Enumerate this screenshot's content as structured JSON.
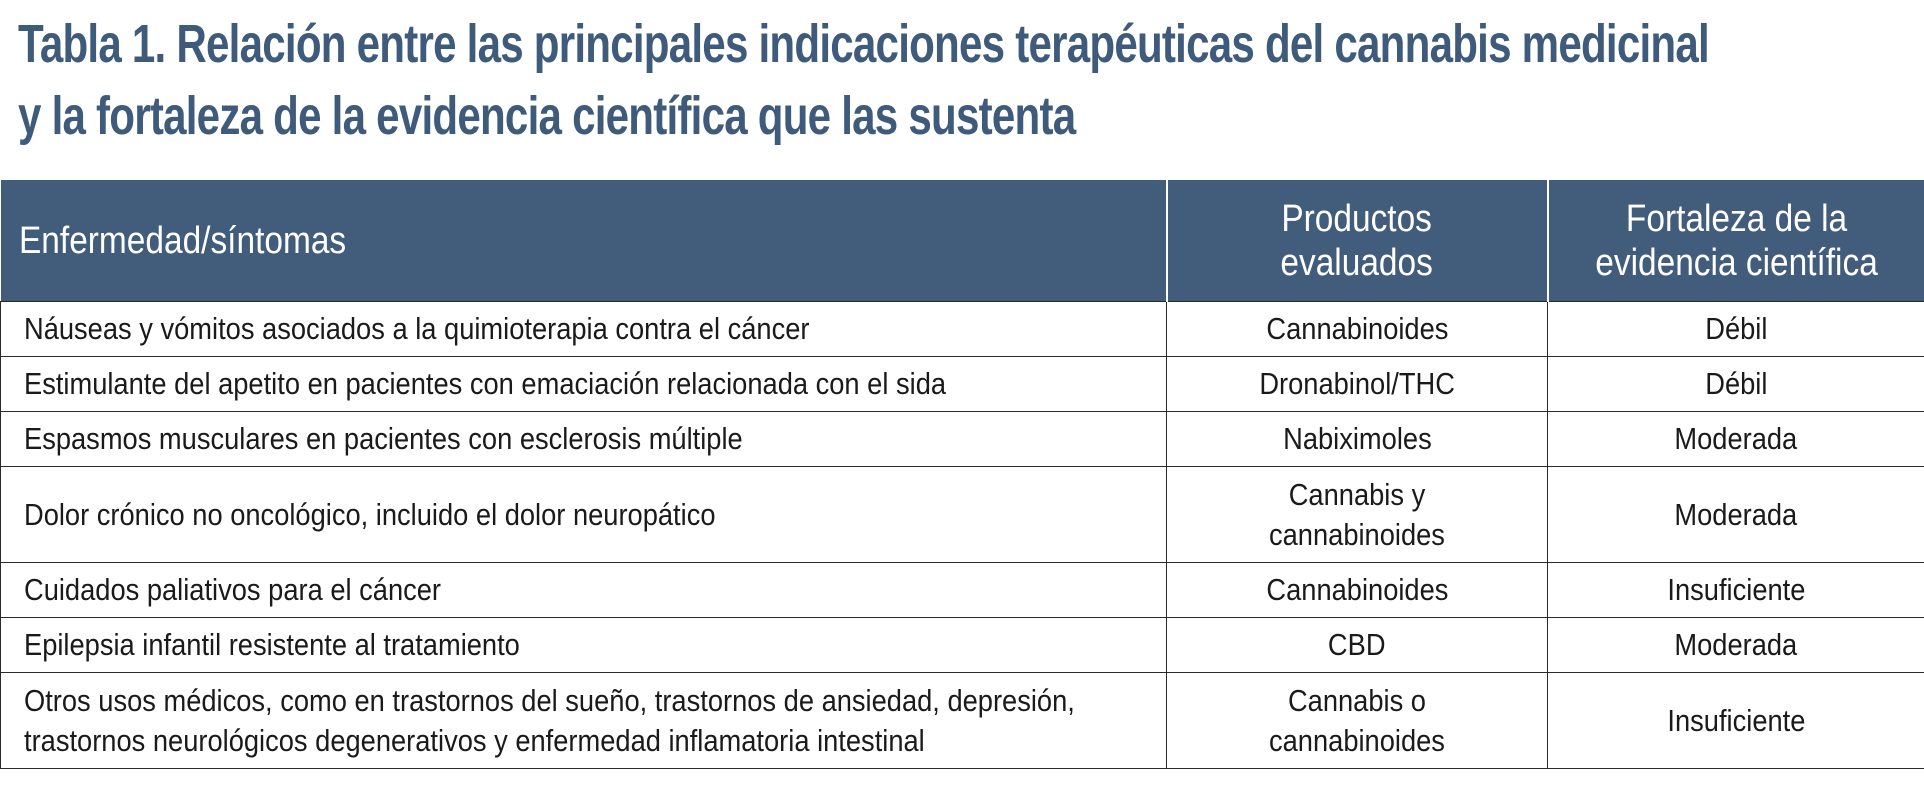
{
  "title": {
    "line1": "Tabla 1. Relación entre las principales indicaciones terapéuticas del cannabis medicinal",
    "line2": "y la fortaleza de la evidencia científica que las sustenta"
  },
  "colors": {
    "title": "#3f5b7c",
    "header_bg": "#425c7b",
    "header_text": "#ffffff",
    "border": "#2a2a2a"
  },
  "table": {
    "headers": {
      "col1": "Enfermedad/síntomas",
      "col2_line1": "Productos",
      "col2_line2": "evaluados",
      "col3_line1": "Fortaleza de la",
      "col3_line2": "evidencia científica"
    },
    "rows": [
      {
        "condition": "Náuseas y vómitos asociados a la quimioterapia contra el cáncer",
        "product": "Cannabinoides",
        "evidence": "Débil"
      },
      {
        "condition": "Estimulante del apetito en pacientes con emaciación relacionada con el sida",
        "product": "Dronabinol/THC",
        "evidence": "Débil"
      },
      {
        "condition": "Espasmos musculares en pacientes con esclerosis múltiple",
        "product": "Nabiximoles",
        "evidence": "Moderada"
      },
      {
        "condition": "Dolor crónico no oncológico, incluido el dolor neuropático",
        "product_line1": "Cannabis y",
        "product_line2": "cannabinoides",
        "evidence": "Moderada"
      },
      {
        "condition": "Cuidados paliativos para el cáncer",
        "product": "Cannabinoides",
        "evidence": "Insuficiente"
      },
      {
        "condition": "Epilepsia infantil resistente al tratamiento",
        "product": "CBD",
        "evidence": "Moderada"
      },
      {
        "condition_line1": "Otros usos médicos, como en trastornos del sueño, trastornos de ansiedad, depresión,",
        "condition_line2": "trastornos neurológicos degenerativos y enfermedad inflamatoria intestinal",
        "product_line1": "Cannabis o",
        "product_line2": "cannabinoides",
        "evidence": "Insuficiente"
      }
    ]
  }
}
